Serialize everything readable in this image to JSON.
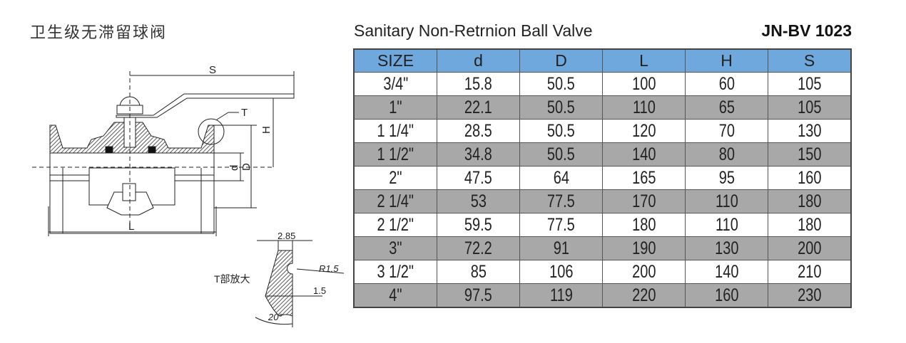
{
  "header": {
    "title_cn": "卫生级无滞留球阀",
    "title_en": "Sanitary Non-Retrnion Ball Valve",
    "model": "JN-BV 1023"
  },
  "drawing": {
    "labels": {
      "S": "S",
      "T": "T",
      "H": "H",
      "d": "d",
      "D": "D",
      "L": "L"
    },
    "detail": {
      "caption": "T部放大",
      "width": "2.85",
      "radius": "R1.5",
      "thickness": "1.5",
      "angle": "20°"
    }
  },
  "table": {
    "columns": [
      "SIZE",
      "d",
      "D",
      "L",
      "H",
      "S"
    ],
    "rows": [
      [
        "3/4\"",
        "15.8",
        "50.5",
        "100",
        "60",
        "105"
      ],
      [
        "1\"",
        "22.1",
        "50.5",
        "110",
        "65",
        "105"
      ],
      [
        "1 1/4\"",
        "28.5",
        "50.5",
        "120",
        "70",
        "130"
      ],
      [
        "1 1/2\"",
        "34.8",
        "50.5",
        "140",
        "80",
        "150"
      ],
      [
        "2\"",
        "47.5",
        "64",
        "165",
        "95",
        "160"
      ],
      [
        "2 1/4\"",
        "53",
        "77.5",
        "170",
        "110",
        "180"
      ],
      [
        "2 1/2\"",
        "59.5",
        "77.5",
        "180",
        "110",
        "180"
      ],
      [
        "3\"",
        "72.2",
        "91",
        "190",
        "130",
        "200"
      ],
      [
        "3 1/2\"",
        "85",
        "106",
        "200",
        "140",
        "210"
      ],
      [
        "4\"",
        "97.5",
        "119",
        "220",
        "160",
        "230"
      ]
    ],
    "header_color": "#6fa8dc",
    "alt_row_color": "#a8a8a8"
  }
}
